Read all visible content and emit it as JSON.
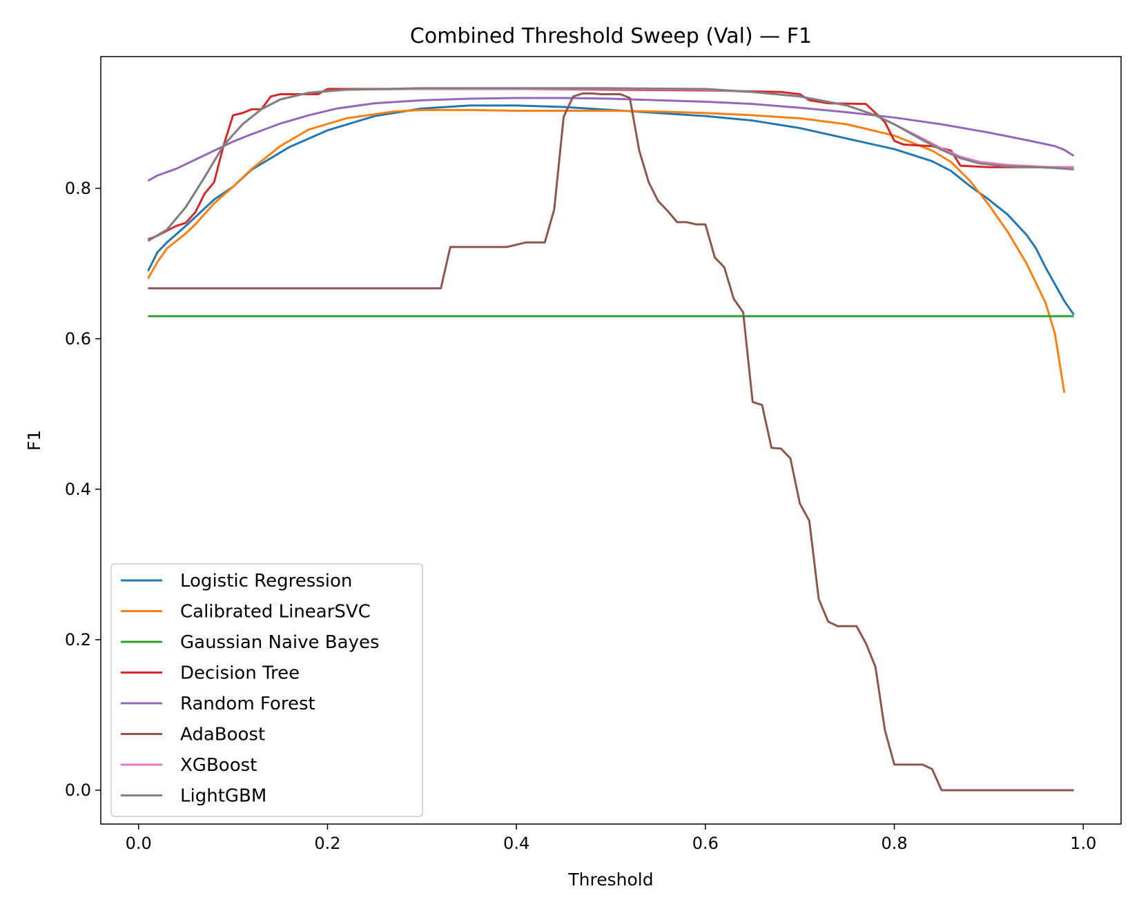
{
  "chart_data": {
    "type": "line",
    "title": "Combined Threshold Sweep (Val) — F1",
    "xlabel": "Threshold",
    "ylabel": "F1",
    "xlim": [
      -0.04,
      1.04
    ],
    "ylim": [
      -0.045,
      0.975
    ],
    "xticks": [
      0.0,
      0.2,
      0.4,
      0.6,
      0.8,
      1.0
    ],
    "xtick_labels": [
      "0.0",
      "0.2",
      "0.4",
      "0.6",
      "0.8",
      "1.0"
    ],
    "yticks": [
      0.0,
      0.2,
      0.4,
      0.6,
      0.8
    ],
    "ytick_labels": [
      "0.0",
      "0.2",
      "0.4",
      "0.6",
      "0.8"
    ],
    "grid": false,
    "legend_position": "lower-left",
    "series": [
      {
        "name": "Logistic Regression",
        "color": "#1f77b4",
        "points": [
          [
            0.01,
            0.69
          ],
          [
            0.02,
            0.715
          ],
          [
            0.03,
            0.728
          ],
          [
            0.05,
            0.75
          ],
          [
            0.08,
            0.785
          ],
          [
            0.1,
            0.802
          ],
          [
            0.12,
            0.825
          ],
          [
            0.16,
            0.855
          ],
          [
            0.2,
            0.877
          ],
          [
            0.25,
            0.896
          ],
          [
            0.3,
            0.906
          ],
          [
            0.35,
            0.91
          ],
          [
            0.4,
            0.91
          ],
          [
            0.45,
            0.908
          ],
          [
            0.5,
            0.904
          ],
          [
            0.55,
            0.9
          ],
          [
            0.6,
            0.896
          ],
          [
            0.65,
            0.89
          ],
          [
            0.7,
            0.88
          ],
          [
            0.75,
            0.866
          ],
          [
            0.8,
            0.852
          ],
          [
            0.84,
            0.836
          ],
          [
            0.86,
            0.823
          ],
          [
            0.88,
            0.803
          ],
          [
            0.9,
            0.785
          ],
          [
            0.92,
            0.765
          ],
          [
            0.94,
            0.738
          ],
          [
            0.95,
            0.72
          ],
          [
            0.96,
            0.695
          ],
          [
            0.98,
            0.65
          ],
          [
            0.99,
            0.632
          ]
        ]
      },
      {
        "name": "Calibrated LinearSVC",
        "color": "#ff7f0e",
        "points": [
          [
            0.01,
            0.68
          ],
          [
            0.02,
            0.702
          ],
          [
            0.03,
            0.72
          ],
          [
            0.05,
            0.74
          ],
          [
            0.06,
            0.752
          ],
          [
            0.08,
            0.78
          ],
          [
            0.1,
            0.802
          ],
          [
            0.12,
            0.826
          ],
          [
            0.15,
            0.856
          ],
          [
            0.18,
            0.878
          ],
          [
            0.22,
            0.893
          ],
          [
            0.27,
            0.902
          ],
          [
            0.3,
            0.904
          ],
          [
            0.35,
            0.904
          ],
          [
            0.4,
            0.903
          ],
          [
            0.5,
            0.903
          ],
          [
            0.55,
            0.902
          ],
          [
            0.6,
            0.9
          ],
          [
            0.65,
            0.897
          ],
          [
            0.7,
            0.893
          ],
          [
            0.75,
            0.885
          ],
          [
            0.8,
            0.87
          ],
          [
            0.84,
            0.85
          ],
          [
            0.86,
            0.835
          ],
          [
            0.88,
            0.81
          ],
          [
            0.9,
            0.778
          ],
          [
            0.92,
            0.742
          ],
          [
            0.94,
            0.7
          ],
          [
            0.96,
            0.648
          ],
          [
            0.97,
            0.607
          ],
          [
            0.98,
            0.528
          ]
        ]
      },
      {
        "name": "Gaussian Naive Bayes",
        "color": "#2ca02c",
        "points": [
          [
            0.01,
            0.63
          ],
          [
            0.99,
            0.63
          ]
        ]
      },
      {
        "name": "Decision Tree",
        "color": "#d62728",
        "points": [
          [
            0.01,
            0.732
          ],
          [
            0.02,
            0.737
          ],
          [
            0.04,
            0.75
          ],
          [
            0.05,
            0.754
          ],
          [
            0.06,
            0.768
          ],
          [
            0.07,
            0.793
          ],
          [
            0.08,
            0.808
          ],
          [
            0.09,
            0.857
          ],
          [
            0.1,
            0.897
          ],
          [
            0.11,
            0.9
          ],
          [
            0.12,
            0.905
          ],
          [
            0.13,
            0.905
          ],
          [
            0.14,
            0.922
          ],
          [
            0.15,
            0.925
          ],
          [
            0.19,
            0.925
          ],
          [
            0.2,
            0.932
          ],
          [
            0.4,
            0.932
          ],
          [
            0.6,
            0.93
          ],
          [
            0.68,
            0.928
          ],
          [
            0.7,
            0.925
          ],
          [
            0.71,
            0.917
          ],
          [
            0.73,
            0.913
          ],
          [
            0.77,
            0.912
          ],
          [
            0.78,
            0.9
          ],
          [
            0.79,
            0.888
          ],
          [
            0.8,
            0.863
          ],
          [
            0.81,
            0.858
          ],
          [
            0.84,
            0.856
          ],
          [
            0.86,
            0.85
          ],
          [
            0.87,
            0.83
          ],
          [
            0.9,
            0.828
          ],
          [
            0.99,
            0.828
          ]
        ]
      },
      {
        "name": "Random Forest",
        "color": "#9467bd",
        "points": [
          [
            0.01,
            0.81
          ],
          [
            0.02,
            0.817
          ],
          [
            0.04,
            0.826
          ],
          [
            0.06,
            0.838
          ],
          [
            0.08,
            0.85
          ],
          [
            0.1,
            0.862
          ],
          [
            0.12,
            0.872
          ],
          [
            0.15,
            0.886
          ],
          [
            0.18,
            0.897
          ],
          [
            0.21,
            0.906
          ],
          [
            0.25,
            0.913
          ],
          [
            0.3,
            0.917
          ],
          [
            0.35,
            0.919
          ],
          [
            0.4,
            0.92
          ],
          [
            0.45,
            0.92
          ],
          [
            0.5,
            0.919
          ],
          [
            0.55,
            0.917
          ],
          [
            0.6,
            0.915
          ],
          [
            0.65,
            0.912
          ],
          [
            0.7,
            0.907
          ],
          [
            0.75,
            0.901
          ],
          [
            0.8,
            0.894
          ],
          [
            0.85,
            0.885
          ],
          [
            0.9,
            0.874
          ],
          [
            0.94,
            0.864
          ],
          [
            0.97,
            0.856
          ],
          [
            0.98,
            0.851
          ],
          [
            0.99,
            0.843
          ]
        ]
      },
      {
        "name": "AdaBoost",
        "color": "#8c564b",
        "points": [
          [
            0.01,
            0.667
          ],
          [
            0.32,
            0.667
          ],
          [
            0.33,
            0.722
          ],
          [
            0.39,
            0.722
          ],
          [
            0.4,
            0.725
          ],
          [
            0.41,
            0.728
          ],
          [
            0.43,
            0.728
          ],
          [
            0.44,
            0.772
          ],
          [
            0.45,
            0.895
          ],
          [
            0.46,
            0.922
          ],
          [
            0.47,
            0.926
          ],
          [
            0.48,
            0.926
          ],
          [
            0.49,
            0.925
          ],
          [
            0.51,
            0.925
          ],
          [
            0.52,
            0.92
          ],
          [
            0.53,
            0.85
          ],
          [
            0.54,
            0.808
          ],
          [
            0.55,
            0.783
          ],
          [
            0.56,
            0.77
          ],
          [
            0.57,
            0.755
          ],
          [
            0.58,
            0.755
          ],
          [
            0.59,
            0.752
          ],
          [
            0.6,
            0.752
          ],
          [
            0.61,
            0.708
          ],
          [
            0.62,
            0.695
          ],
          [
            0.63,
            0.653
          ],
          [
            0.64,
            0.635
          ],
          [
            0.65,
            0.516
          ],
          [
            0.66,
            0.512
          ],
          [
            0.67,
            0.455
          ],
          [
            0.68,
            0.454
          ],
          [
            0.69,
            0.441
          ],
          [
            0.7,
            0.381
          ],
          [
            0.71,
            0.358
          ],
          [
            0.72,
            0.254
          ],
          [
            0.73,
            0.224
          ],
          [
            0.74,
            0.218
          ],
          [
            0.76,
            0.218
          ],
          [
            0.77,
            0.195
          ],
          [
            0.78,
            0.164
          ],
          [
            0.79,
            0.08
          ],
          [
            0.8,
            0.034
          ],
          [
            0.83,
            0.034
          ],
          [
            0.84,
            0.028
          ],
          [
            0.85,
            0.0
          ],
          [
            0.99,
            0.0
          ]
        ]
      },
      {
        "name": "XGBoost",
        "color": "#e377c2",
        "points": [
          [
            0.01,
            0.73
          ],
          [
            0.03,
            0.745
          ],
          [
            0.05,
            0.775
          ],
          [
            0.07,
            0.815
          ],
          [
            0.09,
            0.857
          ],
          [
            0.11,
            0.885
          ],
          [
            0.13,
            0.905
          ],
          [
            0.15,
            0.918
          ],
          [
            0.18,
            0.927
          ],
          [
            0.22,
            0.931
          ],
          [
            0.3,
            0.932
          ],
          [
            0.5,
            0.932
          ],
          [
            0.6,
            0.931
          ],
          [
            0.65,
            0.928
          ],
          [
            0.7,
            0.922
          ],
          [
            0.75,
            0.91
          ],
          [
            0.78,
            0.897
          ],
          [
            0.8,
            0.885
          ],
          [
            0.83,
            0.866
          ],
          [
            0.85,
            0.853
          ],
          [
            0.87,
            0.842
          ],
          [
            0.89,
            0.835
          ],
          [
            0.92,
            0.831
          ],
          [
            0.95,
            0.829
          ],
          [
            0.97,
            0.828
          ],
          [
            0.99,
            0.828
          ]
        ]
      },
      {
        "name": "LightGBM",
        "color": "#7f7f7f",
        "points": [
          [
            0.01,
            0.73
          ],
          [
            0.03,
            0.745
          ],
          [
            0.05,
            0.775
          ],
          [
            0.07,
            0.815
          ],
          [
            0.09,
            0.857
          ],
          [
            0.11,
            0.885
          ],
          [
            0.13,
            0.905
          ],
          [
            0.15,
            0.918
          ],
          [
            0.18,
            0.927
          ],
          [
            0.22,
            0.931
          ],
          [
            0.3,
            0.933
          ],
          [
            0.5,
            0.933
          ],
          [
            0.6,
            0.932
          ],
          [
            0.65,
            0.928
          ],
          [
            0.7,
            0.922
          ],
          [
            0.75,
            0.91
          ],
          [
            0.78,
            0.897
          ],
          [
            0.8,
            0.885
          ],
          [
            0.83,
            0.864
          ],
          [
            0.85,
            0.851
          ],
          [
            0.87,
            0.84
          ],
          [
            0.89,
            0.833
          ],
          [
            0.92,
            0.829
          ],
          [
            0.95,
            0.828
          ],
          [
            0.97,
            0.827
          ],
          [
            0.99,
            0.825
          ]
        ]
      }
    ]
  }
}
